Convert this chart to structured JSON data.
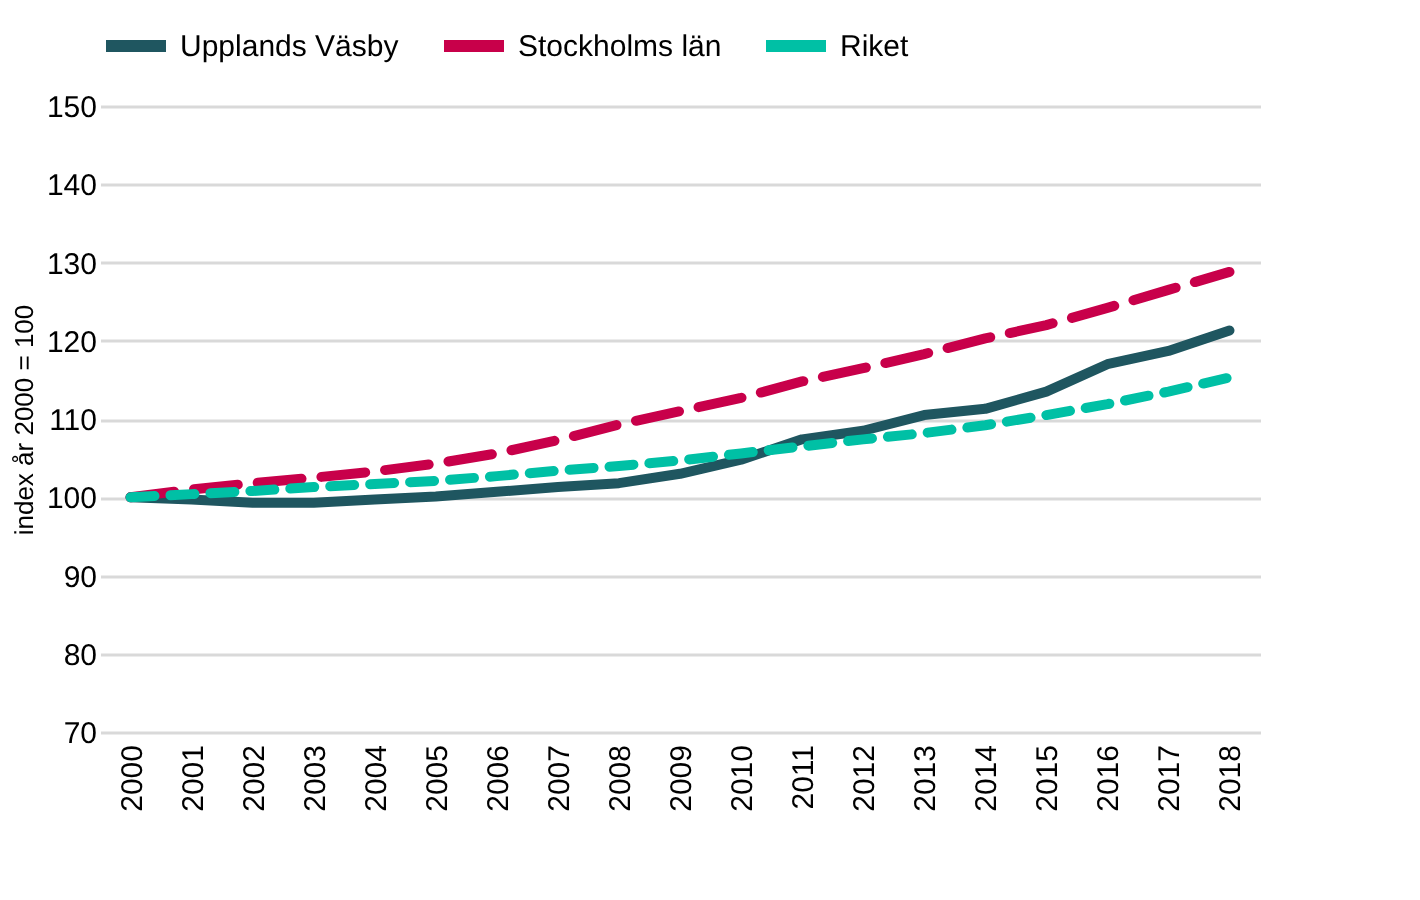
{
  "chart_data": {
    "type": "line",
    "ylabel": "index år 2000 = 100",
    "categories": [
      "2000",
      "2001",
      "2002",
      "2003",
      "2004",
      "2005",
      "2006",
      "2007",
      "2008",
      "2009",
      "2010",
      "2011",
      "2012",
      "2013",
      "2014",
      "2015",
      "2016",
      "2017",
      "2018"
    ],
    "series": [
      {
        "name": "Upplands Väsby",
        "color": "#1f5660",
        "line_style": "solid",
        "values": [
          100,
          99.7,
          99.3,
          99.3,
          99.7,
          100.1,
          100.7,
          101.3,
          101.8,
          103,
          104.8,
          107.4,
          108.5,
          110.5,
          111.3,
          113.5,
          117,
          118.7,
          121.3
        ]
      },
      {
        "name": "Stockholms län",
        "color": "#c8004a",
        "line_style": "dashed",
        "values": [
          100,
          101,
          101.8,
          102.5,
          103.3,
          104.3,
          105.6,
          107.3,
          109.3,
          111,
          112.7,
          114.8,
          116.5,
          118.3,
          120.3,
          122,
          124.2,
          126.5,
          128.8
        ]
      },
      {
        "name": "Riket",
        "color": "#00c0a5",
        "line_style": "dotted",
        "values": [
          100,
          100.4,
          100.8,
          101.3,
          101.7,
          102.1,
          102.7,
          103.4,
          104,
          104.7,
          105.6,
          106.5,
          107.4,
          108.2,
          109.2,
          110.5,
          111.9,
          113.5,
          115.3
        ]
      }
    ],
    "ylim": [
      70,
      150
    ],
    "yticks": [
      70,
      80,
      90,
      100,
      110,
      120,
      130,
      140,
      150
    ],
    "grid": "y",
    "legend": "top",
    "marker": "none"
  }
}
